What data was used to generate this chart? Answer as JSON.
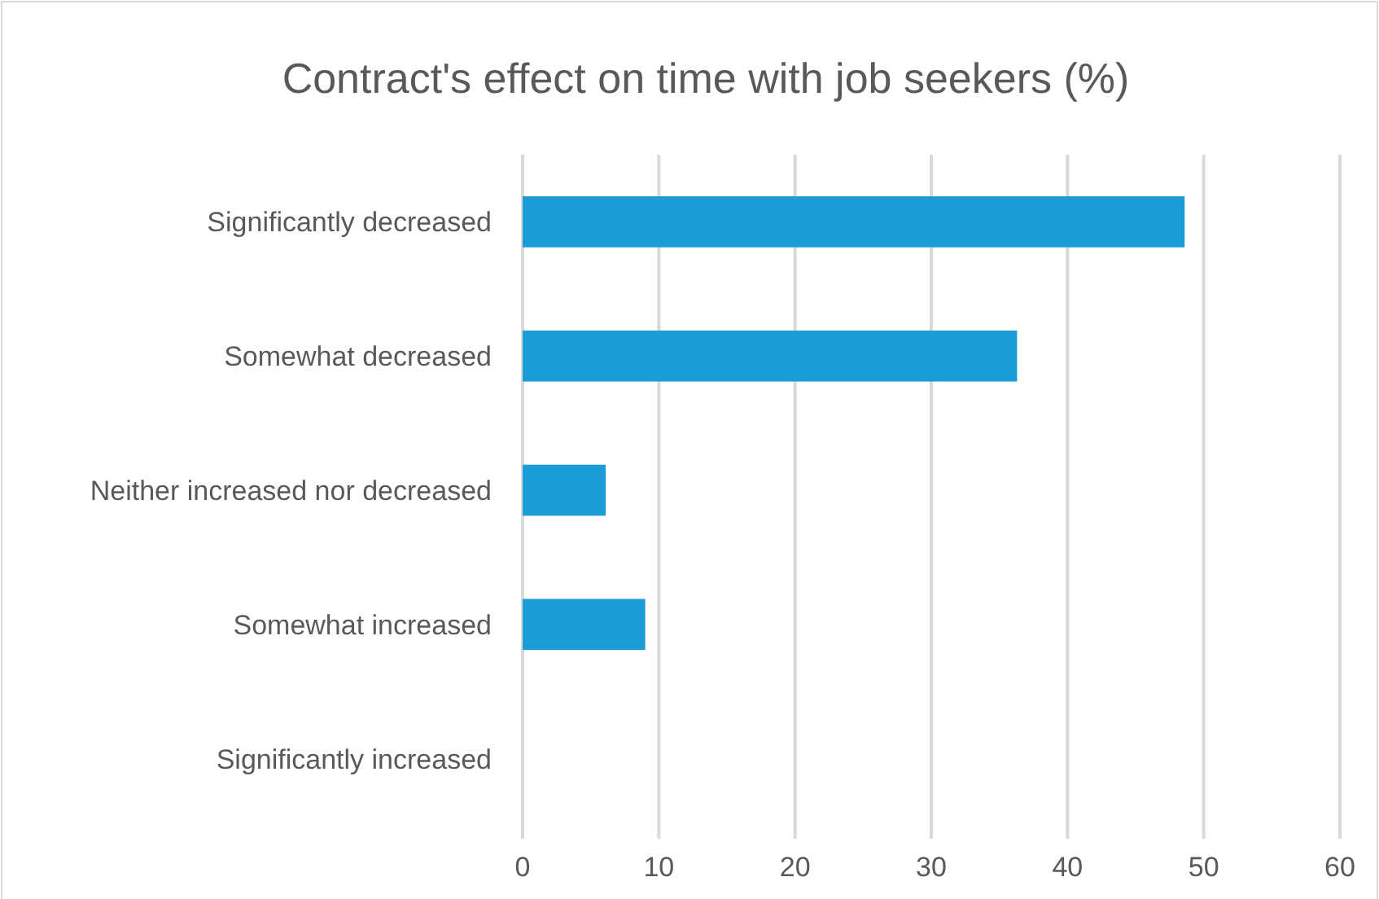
{
  "chart_data": {
    "type": "bar",
    "orientation": "horizontal",
    "title": "Contract's effect on time with job seekers (%)",
    "categories": [
      "Significantly decreased",
      "Somewhat decreased",
      "Neither increased nor decreased",
      "Somewhat increased",
      "Significantly increased"
    ],
    "values": [
      48.6,
      36.3,
      6.1,
      9.0,
      0
    ],
    "color": "#1a9cd6",
    "xlim": [
      0,
      60
    ],
    "xticks": [
      0,
      10,
      20,
      30,
      40,
      50,
      60
    ],
    "grid": "x"
  }
}
